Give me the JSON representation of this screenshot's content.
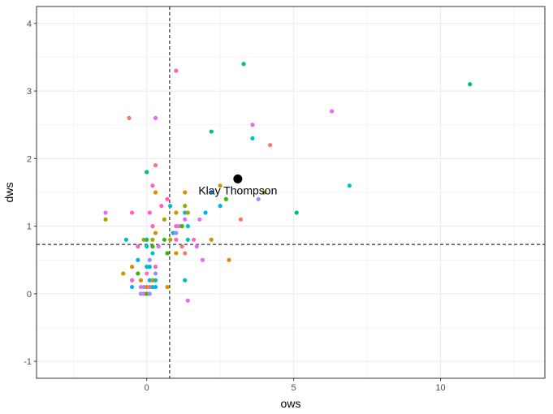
{
  "chart_data": {
    "type": "scatter",
    "title": "",
    "xlabel": "ows",
    "ylabel": "dws",
    "xlim": [
      -3.75,
      13.55
    ],
    "ylim": [
      -1.25,
      4.25
    ],
    "x_ticks": [
      0,
      5,
      10
    ],
    "y_ticks": [
      -1,
      0,
      1,
      2,
      3,
      4
    ],
    "x_tick_labels": [
      "0",
      "5",
      "10"
    ],
    "y_tick_labels": [
      "-1",
      "0",
      "1",
      "2",
      "3",
      "4"
    ],
    "grid": true,
    "legend": "none",
    "ref_lines": {
      "vline_x": 0.78,
      "hline_y": 0.73
    },
    "highlight": {
      "label": "Klay Thompson",
      "x": 3.1,
      "y": 1.7
    },
    "colors": [
      "#F8766D",
      "#D89000",
      "#A3A500",
      "#39B600",
      "#00BF7D",
      "#00BFC4",
      "#00B0F6",
      "#9590FF",
      "#E76BF3",
      "#FF62BC"
    ],
    "points": [
      {
        "x": 11.0,
        "y": 3.1,
        "c": 4
      },
      {
        "x": 3.3,
        "y": 3.4,
        "c": 4
      },
      {
        "x": 1.0,
        "y": 3.3,
        "c": 9
      },
      {
        "x": 6.3,
        "y": 2.7,
        "c": 8
      },
      {
        "x": -0.6,
        "y": 2.6,
        "c": 0
      },
      {
        "x": 0.3,
        "y": 2.6,
        "c": 8
      },
      {
        "x": 3.6,
        "y": 2.5,
        "c": 8
      },
      {
        "x": 2.2,
        "y": 2.4,
        "c": 4
      },
      {
        "x": 3.6,
        "y": 2.3,
        "c": 5
      },
      {
        "x": 4.2,
        "y": 2.2,
        "c": 0
      },
      {
        "x": 0.3,
        "y": 1.9,
        "c": 0
      },
      {
        "x": 0.0,
        "y": 1.8,
        "c": 4
      },
      {
        "x": 0.2,
        "y": 1.6,
        "c": 9
      },
      {
        "x": 6.9,
        "y": 1.6,
        "c": 5
      },
      {
        "x": 2.5,
        "y": 1.6,
        "c": 1
      },
      {
        "x": 1.3,
        "y": 1.5,
        "c": 1
      },
      {
        "x": 0.3,
        "y": 1.5,
        "c": 1
      },
      {
        "x": 2.2,
        "y": 1.5,
        "c": 6
      },
      {
        "x": 4.0,
        "y": 1.5,
        "c": 2
      },
      {
        "x": 0.7,
        "y": 1.4,
        "c": 9
      },
      {
        "x": 2.7,
        "y": 1.4,
        "c": 3
      },
      {
        "x": 3.8,
        "y": 1.4,
        "c": 7
      },
      {
        "x": 0.8,
        "y": 1.3,
        "c": 5
      },
      {
        "x": 0.5,
        "y": 1.3,
        "c": 9
      },
      {
        "x": 1.3,
        "y": 1.3,
        "c": 2
      },
      {
        "x": 2.5,
        "y": 1.3,
        "c": 6
      },
      {
        "x": -1.4,
        "y": 1.2,
        "c": 8
      },
      {
        "x": -0.5,
        "y": 1.2,
        "c": 9
      },
      {
        "x": 0.1,
        "y": 1.2,
        "c": 9
      },
      {
        "x": 1.0,
        "y": 1.2,
        "c": 1
      },
      {
        "x": 1.3,
        "y": 1.2,
        "c": 5
      },
      {
        "x": 1.4,
        "y": 1.2,
        "c": 2
      },
      {
        "x": 2.0,
        "y": 1.2,
        "c": 6
      },
      {
        "x": 5.1,
        "y": 1.2,
        "c": 4
      },
      {
        "x": -1.4,
        "y": 1.1,
        "c": 2
      },
      {
        "x": 0.6,
        "y": 1.1,
        "c": 2
      },
      {
        "x": 1.3,
        "y": 1.1,
        "c": 8
      },
      {
        "x": 1.8,
        "y": 1.1,
        "c": 8
      },
      {
        "x": 3.2,
        "y": 1.1,
        "c": 0
      },
      {
        "x": 0.2,
        "y": 1.0,
        "c": 9
      },
      {
        "x": 1.0,
        "y": 1.0,
        "c": 9
      },
      {
        "x": 1.1,
        "y": 1.0,
        "c": 8
      },
      {
        "x": 1.2,
        "y": 1.0,
        "c": 3
      },
      {
        "x": 1.4,
        "y": 1.0,
        "c": 5
      },
      {
        "x": 0.3,
        "y": 0.9,
        "c": 1
      },
      {
        "x": 0.9,
        "y": 0.9,
        "c": 6
      },
      {
        "x": 1.0,
        "y": 0.9,
        "c": 7
      },
      {
        "x": -0.7,
        "y": 0.8,
        "c": 5
      },
      {
        "x": -0.1,
        "y": 0.8,
        "c": 2
      },
      {
        "x": 0.0,
        "y": 0.8,
        "c": 4
      },
      {
        "x": 0.2,
        "y": 0.8,
        "c": 2
      },
      {
        "x": 0.6,
        "y": 0.8,
        "c": 3
      },
      {
        "x": 0.8,
        "y": 0.8,
        "c": 2
      },
      {
        "x": 1.0,
        "y": 0.8,
        "c": 9
      },
      {
        "x": 1.4,
        "y": 0.8,
        "c": 5
      },
      {
        "x": 1.6,
        "y": 0.8,
        "c": 9
      },
      {
        "x": 2.2,
        "y": 0.8,
        "c": 1
      },
      {
        "x": -0.3,
        "y": 0.7,
        "c": 9
      },
      {
        "x": 0.0,
        "y": 0.7,
        "c": 5
      },
      {
        "x": 0.2,
        "y": 0.7,
        "c": 3
      },
      {
        "x": 0.4,
        "y": 0.7,
        "c": 8
      },
      {
        "x": 1.2,
        "y": 0.7,
        "c": 0
      },
      {
        "x": 1.7,
        "y": 0.7,
        "c": 8
      },
      {
        "x": 0.2,
        "y": 0.6,
        "c": 5
      },
      {
        "x": 0.7,
        "y": 0.6,
        "c": 3
      },
      {
        "x": 1.0,
        "y": 0.6,
        "c": 1
      },
      {
        "x": 1.3,
        "y": 0.6,
        "c": 0
      },
      {
        "x": -0.3,
        "y": 0.5,
        "c": 6
      },
      {
        "x": 0.1,
        "y": 0.5,
        "c": 7
      },
      {
        "x": 1.9,
        "y": 0.5,
        "c": 8
      },
      {
        "x": 2.8,
        "y": 0.5,
        "c": 1
      },
      {
        "x": -0.5,
        "y": 0.4,
        "c": 1
      },
      {
        "x": 0.0,
        "y": 0.4,
        "c": 5
      },
      {
        "x": 0.1,
        "y": 0.4,
        "c": 6
      },
      {
        "x": 0.3,
        "y": 0.4,
        "c": 9
      },
      {
        "x": -0.8,
        "y": 0.3,
        "c": 1
      },
      {
        "x": -0.3,
        "y": 0.3,
        "c": 3
      },
      {
        "x": 0.0,
        "y": 0.3,
        "c": 8
      },
      {
        "x": 0.3,
        "y": 0.3,
        "c": 7
      },
      {
        "x": -0.5,
        "y": 0.2,
        "c": 9
      },
      {
        "x": -0.2,
        "y": 0.2,
        "c": 1
      },
      {
        "x": 0.1,
        "y": 0.2,
        "c": 6
      },
      {
        "x": 0.2,
        "y": 0.2,
        "c": 1
      },
      {
        "x": 0.3,
        "y": 0.2,
        "c": 5
      },
      {
        "x": 1.3,
        "y": 0.2,
        "c": 5
      },
      {
        "x": -0.5,
        "y": 0.1,
        "c": 6
      },
      {
        "x": -0.2,
        "y": 0.1,
        "c": 8
      },
      {
        "x": -0.1,
        "y": 0.1,
        "c": 7
      },
      {
        "x": 0.0,
        "y": 0.1,
        "c": 1
      },
      {
        "x": 0.1,
        "y": 0.1,
        "c": 9
      },
      {
        "x": 0.2,
        "y": 0.1,
        "c": 5
      },
      {
        "x": 0.3,
        "y": 0.1,
        "c": 6
      },
      {
        "x": 0.7,
        "y": 0.1,
        "c": 1
      },
      {
        "x": -0.2,
        "y": 0.0,
        "c": 7
      },
      {
        "x": -0.1,
        "y": 0.0,
        "c": 8
      },
      {
        "x": 0.0,
        "y": 0.0,
        "c": 3
      },
      {
        "x": 0.1,
        "y": 0.0,
        "c": 7
      },
      {
        "x": 1.4,
        "y": -0.1,
        "c": 8
      }
    ]
  }
}
